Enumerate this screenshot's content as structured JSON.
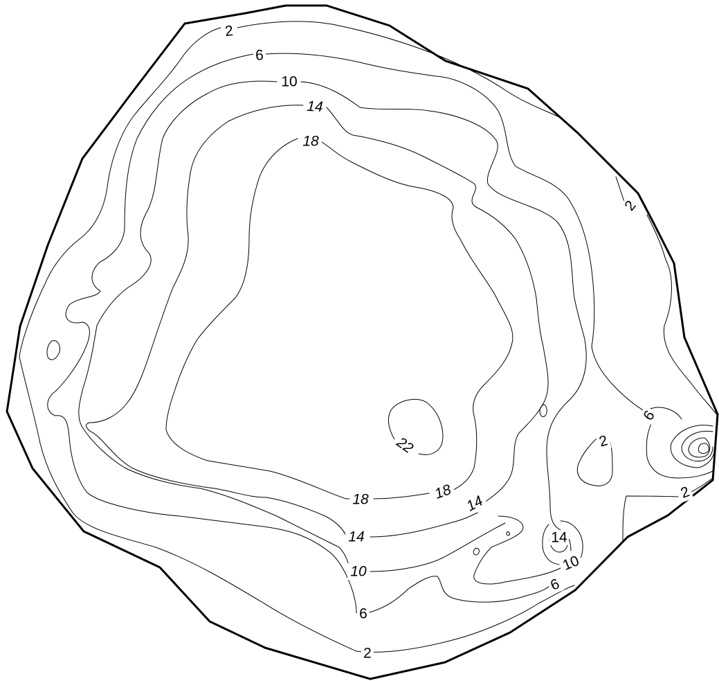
{
  "map": {
    "type": "bathymetric-contour-map",
    "contour_interval": 4,
    "contour_levels": [
      2,
      6,
      10,
      14,
      18,
      22
    ],
    "line_color": "#000000",
    "background_color": "#ffffff",
    "labels": [
      {
        "id": "l2-top",
        "text": "2",
        "level": 2
      },
      {
        "id": "l6-top",
        "text": "6",
        "level": 6
      },
      {
        "id": "l10-top",
        "text": "10",
        "level": 10
      },
      {
        "id": "l14-top",
        "text": "14",
        "level": 14
      },
      {
        "id": "l18-top",
        "text": "18",
        "level": 18
      },
      {
        "id": "l2-ne",
        "text": "2",
        "level": 2
      },
      {
        "id": "l6-e",
        "text": "6",
        "level": 6
      },
      {
        "id": "l2-mid-e",
        "text": "2",
        "level": 2
      },
      {
        "id": "l2-se",
        "text": "2",
        "level": 2
      },
      {
        "id": "l22",
        "text": "22",
        "level": 22
      },
      {
        "id": "l18-bot-a",
        "text": "18",
        "level": 18
      },
      {
        "id": "l18-bot-b",
        "text": "18",
        "level": 18
      },
      {
        "id": "l14-bot-a",
        "text": "14",
        "level": 14
      },
      {
        "id": "l14-bot-b",
        "text": "14",
        "level": 14
      },
      {
        "id": "l14-hole",
        "text": "14",
        "level": 14
      },
      {
        "id": "l10-hole",
        "text": "10",
        "level": 10
      },
      {
        "id": "l10-bot",
        "text": "10",
        "level": 10
      },
      {
        "id": "l6-bot-a",
        "text": "6",
        "level": 6
      },
      {
        "id": "l6-bot-b",
        "text": "6",
        "level": 6
      },
      {
        "id": "l2-bot",
        "text": "2",
        "level": 2
      }
    ]
  }
}
